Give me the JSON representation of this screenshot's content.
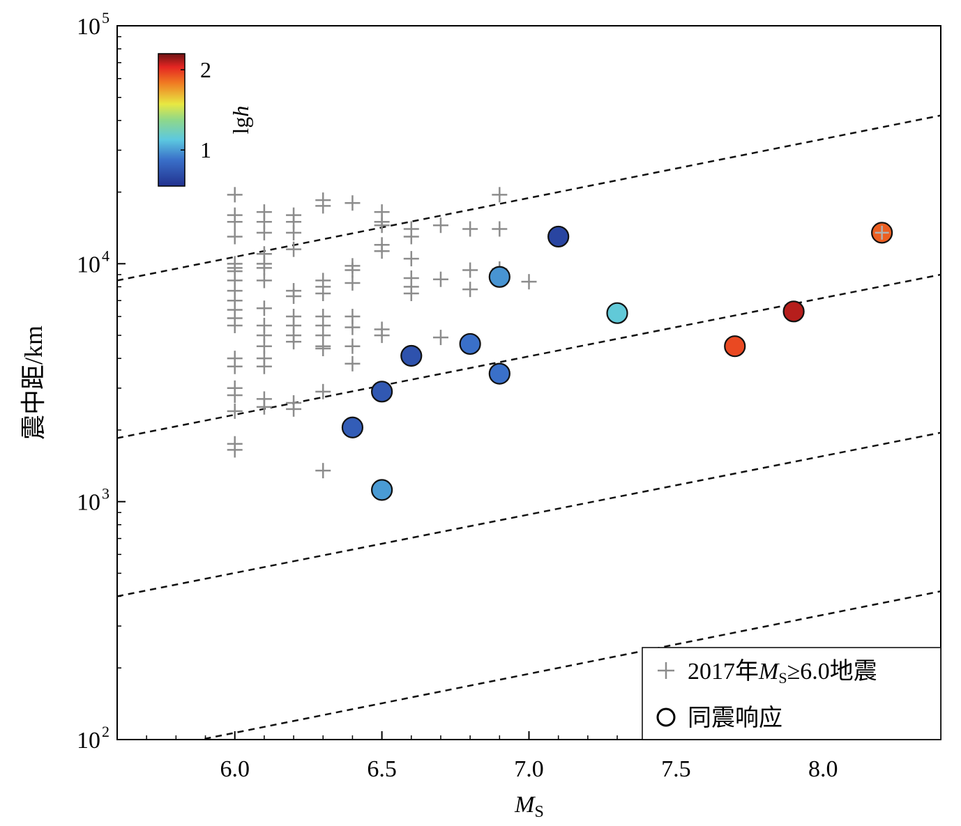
{
  "chart_data": {
    "type": "scatter",
    "title": "",
    "xlabel": "M",
    "xlabel_sub": "S",
    "ylabel": "震中距/km",
    "xlim": [
      5.6,
      8.4
    ],
    "ylim_log10": [
      2,
      5
    ],
    "x_ticks": [
      6.0,
      6.5,
      7.0,
      7.5,
      8.0
    ],
    "x_tick_labels": [
      "6.0",
      "6.5",
      "7.0",
      "7.5",
      "8.0"
    ],
    "y_ticks_log10": [
      2,
      3,
      4,
      5
    ],
    "y_tick_base": "10",
    "y_tick_exponents": [
      "2",
      "3",
      "4",
      "5"
    ],
    "grid": false,
    "dashed_lines": [
      {
        "x": [
          5.6,
          8.4
        ],
        "y": [
          8500,
          42000
        ]
      },
      {
        "x": [
          5.6,
          8.4
        ],
        "y": [
          1850,
          9000
        ]
      },
      {
        "x": [
          5.6,
          8.4
        ],
        "y": [
          400,
          1950
        ]
      },
      {
        "x": [
          5.6,
          8.4
        ],
        "y": [
          85,
          420
        ]
      }
    ],
    "series": [
      {
        "name": "2017年M_S≥6.0地震",
        "marker": "plus",
        "color": "#8c8c8c",
        "points": [
          [
            6.0,
            19500
          ],
          [
            6.0,
            16000
          ],
          [
            6.0,
            15000
          ],
          [
            6.0,
            13000
          ],
          [
            6.0,
            10000
          ],
          [
            6.0,
            9600
          ],
          [
            6.0,
            9300
          ],
          [
            6.0,
            8500
          ],
          [
            6.0,
            7700
          ],
          [
            6.0,
            7000
          ],
          [
            6.0,
            6400
          ],
          [
            6.0,
            5900
          ],
          [
            6.0,
            5500
          ],
          [
            6.0,
            4000
          ],
          [
            6.0,
            3700
          ],
          [
            6.0,
            3000
          ],
          [
            6.0,
            2800
          ],
          [
            6.0,
            2400
          ],
          [
            6.0,
            1750
          ],
          [
            6.0,
            1650
          ],
          [
            6.1,
            16500
          ],
          [
            6.1,
            15000
          ],
          [
            6.1,
            13500
          ],
          [
            6.1,
            11000
          ],
          [
            6.1,
            10000
          ],
          [
            6.1,
            9600
          ],
          [
            6.1,
            8500
          ],
          [
            6.1,
            6500
          ],
          [
            6.1,
            5500
          ],
          [
            6.1,
            5000
          ],
          [
            6.1,
            4500
          ],
          [
            6.1,
            4000
          ],
          [
            6.1,
            3700
          ],
          [
            6.1,
            2700
          ],
          [
            6.1,
            2500
          ],
          [
            6.2,
            16000
          ],
          [
            6.2,
            15000
          ],
          [
            6.2,
            13500
          ],
          [
            6.2,
            11500
          ],
          [
            6.2,
            7700
          ],
          [
            6.2,
            7300
          ],
          [
            6.2,
            6000
          ],
          [
            6.2,
            5500
          ],
          [
            6.2,
            5000
          ],
          [
            6.2,
            4700
          ],
          [
            6.2,
            2600
          ],
          [
            6.2,
            2450
          ],
          [
            6.3,
            18500
          ],
          [
            6.3,
            17500
          ],
          [
            6.3,
            8500
          ],
          [
            6.3,
            8000
          ],
          [
            6.3,
            7500
          ],
          [
            6.3,
            6000
          ],
          [
            6.3,
            5500
          ],
          [
            6.3,
            5000
          ],
          [
            6.3,
            4500
          ],
          [
            6.3,
            4400
          ],
          [
            6.3,
            2900
          ],
          [
            6.3,
            1350
          ],
          [
            6.4,
            18000
          ],
          [
            6.4,
            9800
          ],
          [
            6.4,
            9400
          ],
          [
            6.4,
            8300
          ],
          [
            6.4,
            6000
          ],
          [
            6.4,
            5400
          ],
          [
            6.4,
            4500
          ],
          [
            6.4,
            3800
          ],
          [
            6.5,
            16500
          ],
          [
            6.5,
            15000
          ],
          [
            6.5,
            14500
          ],
          [
            6.5,
            12000
          ],
          [
            6.5,
            11300
          ],
          [
            6.5,
            5300
          ],
          [
            6.5,
            5000
          ],
          [
            6.6,
            14000
          ],
          [
            6.6,
            13000
          ],
          [
            6.6,
            10500
          ],
          [
            6.6,
            8700
          ],
          [
            6.6,
            8000
          ],
          [
            6.6,
            7500
          ],
          [
            6.7,
            14500
          ],
          [
            6.7,
            8600
          ],
          [
            6.7,
            4900
          ],
          [
            6.8,
            14000
          ],
          [
            6.8,
            9400
          ],
          [
            6.8,
            7800
          ],
          [
            6.9,
            19500
          ],
          [
            6.9,
            14000
          ],
          [
            6.9,
            9500
          ],
          [
            7.0,
            8400
          ],
          [
            8.2,
            13500
          ]
        ]
      },
      {
        "name": "同震响应",
        "marker": "circle",
        "colorscale": "lgh",
        "points": [
          {
            "x": 6.4,
            "y": 2050,
            "lgh": 0.78
          },
          {
            "x": 6.5,
            "y": 2900,
            "lgh": 0.75
          },
          {
            "x": 6.5,
            "y": 1120,
            "lgh": 1.0
          },
          {
            "x": 6.6,
            "y": 4100,
            "lgh": 0.72
          },
          {
            "x": 6.8,
            "y": 4600,
            "lgh": 0.88
          },
          {
            "x": 6.9,
            "y": 3450,
            "lgh": 0.88
          },
          {
            "x": 6.9,
            "y": 8800,
            "lgh": 0.98
          },
          {
            "x": 7.1,
            "y": 13000,
            "lgh": 0.65
          },
          {
            "x": 7.3,
            "y": 6200,
            "lgh": 1.15
          },
          {
            "x": 7.7,
            "y": 4500,
            "lgh": 1.95
          },
          {
            "x": 7.9,
            "y": 6300,
            "lgh": 2.1
          },
          {
            "x": 8.2,
            "y": 13500,
            "lgh": 1.9
          }
        ]
      }
    ],
    "colorbar": {
      "label_prefix": "lg",
      "label_var": "h",
      "range": [
        0.55,
        2.2
      ],
      "ticks": [
        1,
        2
      ],
      "tick_labels": [
        "1",
        "2"
      ],
      "position": "top-left"
    },
    "legend": {
      "position": "bottom-right",
      "entries": [
        {
          "marker": "plus",
          "prefix": "2017年",
          "sym": "M",
          "sub": "S",
          "suffix": "≥6.0地震"
        },
        {
          "marker": "circle",
          "text": "同震响应"
        }
      ]
    }
  }
}
